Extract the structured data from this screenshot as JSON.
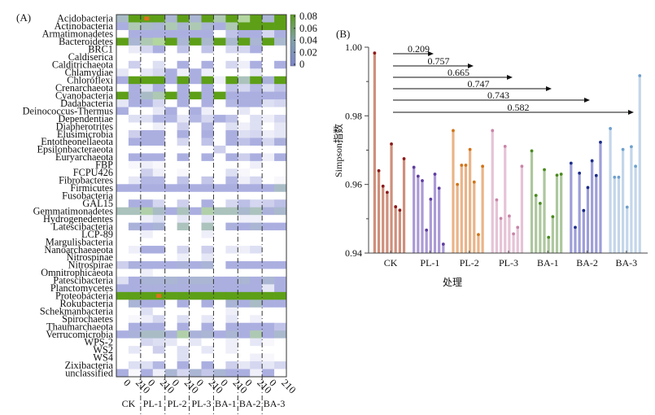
{
  "panels": {
    "A_label": "(A)",
    "B_label": "(B)"
  },
  "chart_data": [
    {
      "type": "heatmap",
      "title": "",
      "panel": "(A)",
      "rows": [
        "Acidobacteria",
        "Actinobacteria",
        "Armatimonadetes",
        "Bacteroidetes",
        "BRC1",
        "Caldiserica",
        "Calditrichaeota",
        "Chlamydiae",
        "Chloroflexi",
        "Crenarchaeota",
        "Cyanobacteria",
        "Dadabacteria",
        "Deinococcus-Thermus",
        "Dependentiae",
        "Diapherotrites",
        "Elusimicrobia",
        "Entotheonellaeota",
        "Epsilonbacteraeota",
        "Euryarchaeota",
        "FBP",
        "FCPU426",
        "Fibrobacteres",
        "Firmicutes",
        "Fusobacteria",
        "GAL15",
        "Gemmatimonadetes",
        "Hydrogenedentes",
        "Latescibacteria",
        "LCP-89",
        "Margulisbacteria",
        "Nanoarchaeaeota",
        "Nitrospinae",
        "Nitrospirae",
        "Omnitrophicaeota",
        "Patescibacteria",
        "Planctomycetes",
        "Proteobacteria",
        "Rokubacteria",
        "Schekmanbacteria",
        "Spirochaetes",
        "Thaumarchaeota",
        "Verrucomicrobia",
        "WPS-2",
        "WS2",
        "WS4",
        "Zixibacteria",
        "unclassified"
      ],
      "groups": [
        "CK",
        "PL-1",
        "PL-2",
        "PL-3",
        "BA-1",
        "BA-2",
        "BA-3"
      ],
      "columns": [
        "0",
        "210",
        "0",
        "210",
        "0",
        "210",
        "0",
        "210",
        "0",
        "210",
        "0",
        "210",
        "0",
        "210"
      ],
      "colorbar": {
        "ticks": [
          "0.08",
          "0.06",
          "0.04",
          "0.02",
          "0"
        ],
        "range": [
          0,
          0.08
        ],
        "low_color": "#7b84cc",
        "high_color": "#5a9e1a"
      },
      "highlight_marker_color": "#e0701c",
      "highlights": [
        [
          0,
          2
        ],
        [
          36,
          3
        ]
      ],
      "values": [
        [
          0.04,
          0.08,
          0.08,
          0.08,
          0.03,
          0.08,
          0.03,
          0.08,
          0.05,
          0.08,
          0.06,
          0.08,
          0.03,
          0.08
        ],
        [
          0.02,
          0.05,
          0.04,
          0.03,
          0.05,
          0.03,
          0.05,
          0.03,
          0.02,
          0.05,
          0.08,
          0.08,
          0.08,
          0.08
        ],
        [
          0.0,
          0.02,
          0.02,
          0.02,
          0.02,
          0.02,
          0.02,
          0.02,
          0.0,
          0.015,
          0.02,
          0.02,
          0.01,
          0.02
        ],
        [
          0.08,
          0.03,
          0.05,
          0.06,
          0.08,
          0.03,
          0.08,
          0.035,
          0.08,
          0.035,
          0.08,
          0.03,
          0.08,
          0.035
        ],
        [
          0.0,
          0.005,
          0.01,
          0.02,
          0.0,
          0.015,
          0.0,
          0.015,
          0.0,
          0.01,
          0.01,
          0.02,
          0.0,
          0.0
        ],
        [
          0.0,
          0.0,
          0.0,
          0.0,
          0.0,
          0.0,
          0.0,
          0.0,
          0.0,
          0.0,
          0.0,
          0.0,
          0.0,
          0.0
        ],
        [
          0.0,
          0.012,
          0.0,
          0.008,
          0.0,
          0.02,
          0.0,
          0.02,
          0.0,
          0.01,
          0.004,
          0.02,
          0.0,
          0.02
        ],
        [
          0.006,
          0.0,
          0.006,
          0.01,
          0.02,
          0.004,
          0.02,
          0.004,
          0.0,
          0.0,
          0.0,
          0.006,
          0.0,
          0.0
        ],
        [
          0.02,
          0.08,
          0.08,
          0.08,
          0.02,
          0.08,
          0.02,
          0.08,
          0.004,
          0.08,
          0.045,
          0.08,
          0.025,
          0.08
        ],
        [
          0.0,
          0.02,
          0.008,
          0.02,
          0.0,
          0.02,
          0.0,
          0.02,
          0.0,
          0.015,
          0.01,
          0.018,
          0.008,
          0.015
        ],
        [
          0.08,
          0.02,
          0.04,
          0.05,
          0.08,
          0.02,
          0.08,
          0.02,
          0.08,
          0.02,
          0.02,
          0.02,
          0.02,
          0.02
        ],
        [
          0.006,
          0.02,
          0.02,
          0.01,
          0.0,
          0.02,
          0.0,
          0.02,
          0.0,
          0.018,
          0.02,
          0.02,
          0.008,
          0.01
        ],
        [
          0.02,
          0.0,
          0.0,
          0.006,
          0.02,
          0.0,
          0.02,
          0.004,
          0.0,
          0.0,
          0.006,
          0.0,
          0.0,
          0.0
        ],
        [
          0.0,
          0.008,
          0.008,
          0.018,
          0.018,
          0.006,
          0.018,
          0.01,
          0.02,
          0.015,
          0.0,
          0.008,
          0.004,
          0.01
        ],
        [
          0.0,
          0.0,
          0.0,
          0.004,
          0.0,
          0.012,
          0.0,
          0.018,
          0.0,
          0.008,
          0.004,
          0.008,
          0.0,
          0.006
        ],
        [
          0.0,
          0.012,
          0.02,
          0.02,
          0.0,
          0.02,
          0.0,
          0.02,
          0.0,
          0.02,
          0.008,
          0.01,
          0.004,
          0.006
        ],
        [
          0.0,
          0.02,
          0.02,
          0.02,
          0.0,
          0.01,
          0.0,
          0.015,
          0.0,
          0.02,
          0.015,
          0.02,
          0.01,
          0.022
        ],
        [
          0.0,
          0.0,
          0.0,
          0.0,
          0.0,
          0.0,
          0.0,
          0.0,
          0.012,
          0.0,
          0.0,
          0.0,
          0.0,
          0.0
        ],
        [
          0.0,
          0.02,
          0.02,
          0.02,
          0.0,
          0.02,
          0.0,
          0.02,
          0.0,
          0.02,
          0.012,
          0.02,
          0.004,
          0.02
        ],
        [
          0.0,
          0.002,
          0.004,
          0.002,
          0.0,
          0.0,
          0.0,
          0.0,
          0.0,
          0.0,
          0.0,
          0.004,
          0.0,
          0.0
        ],
        [
          0.0,
          0.0,
          0.012,
          0.004,
          0.0,
          0.002,
          0.0,
          0.0,
          0.0,
          0.008,
          0.002,
          0.0,
          0.0,
          0.0
        ],
        [
          0.0,
          0.006,
          0.018,
          0.018,
          0.0,
          0.015,
          0.0,
          0.014,
          0.0,
          0.018,
          0.004,
          0.01,
          0.0,
          0.002
        ],
        [
          0.02,
          0.02,
          0.02,
          0.02,
          0.02,
          0.02,
          0.02,
          0.02,
          0.02,
          0.02,
          0.02,
          0.02,
          0.02,
          0.04
        ],
        [
          0.0,
          0.0,
          0.0,
          0.0,
          0.0,
          0.0,
          0.0,
          0.0,
          0.0,
          0.0,
          0.0,
          0.0,
          0.0,
          0.0
        ],
        [
          0.0,
          0.02,
          0.02,
          0.01,
          0.0,
          0.012,
          0.0,
          0.02,
          0.0,
          0.01,
          0.016,
          0.01,
          0.012,
          0.016
        ],
        [
          0.045,
          0.045,
          0.055,
          0.04,
          0.02,
          0.045,
          0.02,
          0.055,
          0.045,
          0.045,
          0.035,
          0.045,
          0.025,
          0.035
        ],
        [
          0.0,
          0.0,
          0.004,
          0.008,
          0.0,
          0.006,
          0.0,
          0.006,
          0.0,
          0.0,
          0.004,
          0.004,
          0.0,
          0.0
        ],
        [
          0.0,
          0.025,
          0.02,
          0.028,
          0.0,
          0.045,
          0.0,
          0.045,
          0.0,
          0.022,
          0.02,
          0.03,
          0.02,
          0.02
        ],
        [
          0.0,
          0.0,
          0.004,
          0.0,
          0.0,
          0.0,
          0.0,
          0.004,
          0.0,
          0.0,
          0.0,
          0.0,
          0.0,
          0.0
        ],
        [
          0.0,
          0.0,
          0.0,
          0.0,
          0.0,
          0.0,
          0.0,
          0.0,
          0.0,
          0.0,
          0.0,
          0.0,
          0.0,
          0.0
        ],
        [
          0.0,
          0.004,
          0.02,
          0.02,
          0.0,
          0.01,
          0.0,
          0.012,
          0.0,
          0.006,
          0.004,
          0.008,
          0.0,
          0.0
        ],
        [
          0.0,
          0.0,
          0.0,
          0.0,
          0.0,
          0.004,
          0.0,
          0.006,
          0.0,
          0.0,
          0.0,
          0.0,
          0.0,
          0.0
        ],
        [
          0.012,
          0.022,
          0.02,
          0.02,
          0.02,
          0.025,
          0.02,
          0.028,
          0.0,
          0.02,
          0.02,
          0.02,
          0.02,
          0.02
        ],
        [
          0.0,
          0.0,
          0.004,
          0.0,
          0.0,
          0.0,
          0.0,
          0.0,
          0.0,
          0.0,
          0.0,
          0.0,
          0.0,
          0.0
        ],
        [
          0.008,
          0.02,
          0.028,
          0.028,
          0.03,
          0.025,
          0.03,
          0.03,
          0.02,
          0.02,
          0.03,
          0.02,
          0.03,
          0.02
        ],
        [
          0.02,
          0.02,
          0.022,
          0.022,
          0.022,
          0.022,
          0.022,
          0.022,
          0.02,
          0.02,
          0.02,
          0.02,
          0.006,
          0.02
        ],
        [
          0.08,
          0.08,
          0.08,
          0.08,
          0.08,
          0.08,
          0.08,
          0.08,
          0.08,
          0.08,
          0.08,
          0.08,
          0.08,
          0.08
        ],
        [
          0.0,
          0.028,
          0.02,
          0.02,
          0.0,
          0.02,
          0.0,
          0.02,
          0.0,
          0.028,
          0.02,
          0.04,
          0.02,
          0.02
        ],
        [
          0.0,
          0.0,
          0.008,
          0.0,
          0.0,
          0.0,
          0.0,
          0.0,
          0.0,
          0.004,
          0.0,
          0.0,
          0.0,
          0.0
        ],
        [
          0.0,
          0.002,
          0.004,
          0.01,
          0.0,
          0.008,
          0.0,
          0.006,
          0.0,
          0.006,
          0.0,
          0.004,
          0.0,
          0.0
        ],
        [
          0.0,
          0.02,
          0.02,
          0.02,
          0.0,
          0.02,
          0.0,
          0.02,
          0.0,
          0.02,
          0.02,
          0.02,
          0.02,
          0.015
        ],
        [
          0.02,
          0.025,
          0.04,
          0.04,
          0.025,
          0.055,
          0.025,
          0.03,
          0.02,
          0.03,
          0.02,
          0.05,
          0.02,
          0.035
        ],
        [
          0.0,
          0.0,
          0.01,
          0.008,
          0.006,
          0.0,
          0.006,
          0.0,
          0.0,
          0.004,
          0.0,
          0.006,
          0.002,
          0.0
        ],
        [
          0.0,
          0.006,
          0.0,
          0.012,
          0.0,
          0.008,
          0.0,
          0.006,
          0.0,
          0.004,
          0.0,
          0.0,
          0.0,
          0.0
        ],
        [
          0.0,
          0.0,
          0.0,
          0.0,
          0.0,
          0.008,
          0.0,
          0.0,
          0.0,
          0.0,
          0.0,
          0.004,
          0.002,
          0.0
        ],
        [
          0.0,
          0.008,
          0.008,
          0.018,
          0.0,
          0.02,
          0.0,
          0.02,
          0.0,
          0.012,
          0.006,
          0.01,
          0.006,
          0.01
        ],
        [
          0.02,
          0.002,
          0.02,
          0.004,
          0.03,
          0.01,
          0.03,
          0.014,
          0.03,
          0.02,
          0.02,
          0.004,
          0.02,
          0.0
        ]
      ]
    },
    {
      "type": "bar",
      "panel": "(B)",
      "title": "",
      "xlabel": "处理",
      "ylabel": "Simpson指数",
      "ylim": [
        0.94,
        1.0
      ],
      "yticks": [
        "1.00",
        "0.98",
        "0.96",
        "0.94"
      ],
      "minor_yticks": [
        0.99,
        0.97,
        0.95
      ],
      "categories": [
        "CK",
        "PL-1",
        "PL-2",
        "PL-3",
        "BA-1",
        "BA-2",
        "BA-3"
      ],
      "series": [
        {
          "name": "CK",
          "bar_color": "#cf8f7b",
          "dot_color": "#8b1a1a",
          "values": [
            0.9983,
            0.964,
            0.9595,
            0.9577,
            0.9718,
            0.9535,
            0.9525,
            0.9675
          ]
        },
        {
          "name": "PL-1",
          "bar_color": "#ab9ad6",
          "dot_color": "#5e3d9e",
          "values": [
            0.965,
            0.9624,
            0.9611,
            0.9467,
            0.9557,
            0.963,
            0.9589,
            0.9426
          ]
        },
        {
          "name": "PL-2",
          "bar_color": "#eab488",
          "dot_color": "#d07418",
          "values": [
            0.9757,
            0.96,
            0.9656,
            0.9656,
            0.9702,
            0.9607,
            0.9454,
            0.9653
          ]
        },
        {
          "name": "PL-3",
          "bar_color": "#e6c3d6",
          "dot_color": "#c884a8",
          "values": [
            0.9757,
            0.9555,
            0.9501,
            0.9711,
            0.9508,
            0.9456,
            0.9475,
            0.9653
          ]
        },
        {
          "name": "BA-1",
          "bar_color": "#adc79e",
          "dot_color": "#4a8a1e",
          "values": [
            0.9698,
            0.9568,
            0.9545,
            0.9643,
            0.9446,
            0.9506,
            0.9627,
            0.963
          ]
        },
        {
          "name": "BA-2",
          "bar_color": "#9d9ed8",
          "dot_color": "#1c2c8a",
          "values": [
            0.9662,
            0.9475,
            0.9633,
            0.9524,
            0.9591,
            0.9669,
            0.9626,
            0.9723
          ]
        },
        {
          "name": "BA-3",
          "bar_color": "#c3d6ea",
          "dot_color": "#6fa0cc",
          "values": [
            0.9763,
            0.9621,
            0.9621,
            0.9702,
            0.9534,
            0.971,
            0.9653,
            0.9917
          ]
        }
      ],
      "annotations": [
        {
          "from": "CK",
          "to": "PL-1",
          "label": "0.209"
        },
        {
          "from": "CK",
          "to": "PL-2",
          "label": "0.757"
        },
        {
          "from": "CK",
          "to": "PL-3",
          "label": "0.665"
        },
        {
          "from": "CK",
          "to": "BA-1",
          "label": "0.747"
        },
        {
          "from": "CK",
          "to": "BA-2",
          "label": "0.743"
        },
        {
          "from": "CK",
          "to": "BA-3",
          "label": "0.582"
        }
      ]
    }
  ]
}
